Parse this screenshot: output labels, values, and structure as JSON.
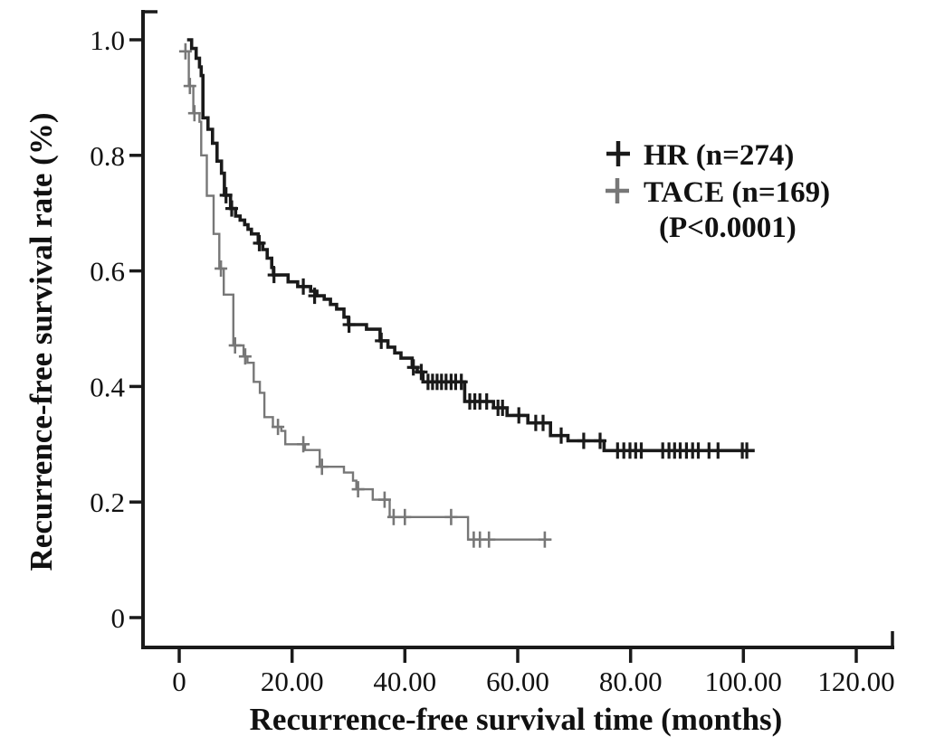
{
  "chart_data": {
    "type": "line",
    "subtype": "kaplan-meier-step-curves",
    "title": "",
    "xlabel": "Recurrence-free survival time (months)",
    "ylabel": "Recurrence-free survival rate (%)",
    "xlim": [
      0,
      127
    ],
    "ylim": [
      0,
      1.05
    ],
    "grid": false,
    "legend_position": "upper-right",
    "x_ticks": [
      {
        "value": 0,
        "label": "0"
      },
      {
        "value": 20,
        "label": "20.00"
      },
      {
        "value": 40,
        "label": "40.00"
      },
      {
        "value": 60,
        "label": "60.00"
      },
      {
        "value": 80,
        "label": "80.00"
      },
      {
        "value": 100,
        "label": "100.00"
      },
      {
        "value": 120,
        "label": "120.00"
      }
    ],
    "y_ticks": [
      {
        "value": 0,
        "label": "0"
      },
      {
        "value": 0.2,
        "label": "0.2"
      },
      {
        "value": 0.4,
        "label": "0.4"
      },
      {
        "value": 0.6,
        "label": "0.6"
      },
      {
        "value": 0.8,
        "label": "0.8"
      },
      {
        "value": 1.0,
        "label": "1.0"
      }
    ],
    "legend": {
      "items": [
        {
          "label": "HR (n=274)",
          "color": "#1a1a1a",
          "marker": "plus"
        },
        {
          "label": "TACE (n=169)",
          "color": "#777777",
          "marker": "plus"
        }
      ],
      "annotation": "(P<0.0001)"
    },
    "colors": {
      "hr": "#1a1a1a",
      "tace": "#777777",
      "axis": "#1a1a1a",
      "background": "#ffffff"
    },
    "series": [
      {
        "name": "HR",
        "n": 274,
        "color": "#1a1a1a",
        "line_width": 3.6,
        "end_time": 102,
        "steps": [
          [
            1.4,
            1.0
          ],
          [
            2.2,
            0.985
          ],
          [
            3.0,
            0.968
          ],
          [
            3.6,
            0.953
          ],
          [
            3.9,
            0.938
          ],
          [
            4.2,
            0.865
          ],
          [
            5.1,
            0.845
          ],
          [
            5.9,
            0.821
          ],
          [
            6.7,
            0.79
          ],
          [
            7.5,
            0.769
          ],
          [
            8.0,
            0.731
          ],
          [
            9.1,
            0.708
          ],
          [
            10.0,
            0.695
          ],
          [
            10.8,
            0.688
          ],
          [
            11.6,
            0.68
          ],
          [
            12.2,
            0.672
          ],
          [
            12.8,
            0.664
          ],
          [
            14.0,
            0.648
          ],
          [
            14.8,
            0.637
          ],
          [
            15.6,
            0.622
          ],
          [
            16.4,
            0.606
          ],
          [
            16.7,
            0.593
          ],
          [
            19.3,
            0.581
          ],
          [
            21.0,
            0.573
          ],
          [
            23.3,
            0.565
          ],
          [
            24.4,
            0.557
          ],
          [
            25.7,
            0.551
          ],
          [
            26.8,
            0.542
          ],
          [
            27.9,
            0.534
          ],
          [
            29.2,
            0.52
          ],
          [
            30.0,
            0.507
          ],
          [
            33.2,
            0.499
          ],
          [
            35.6,
            0.479
          ],
          [
            37.0,
            0.468
          ],
          [
            38.2,
            0.458
          ],
          [
            39.3,
            0.449
          ],
          [
            41.3,
            0.433
          ],
          [
            42.2,
            0.425
          ],
          [
            43.2,
            0.408
          ],
          [
            50.6,
            0.374
          ],
          [
            55.7,
            0.363
          ],
          [
            58.1,
            0.35
          ],
          [
            61.8,
            0.337
          ],
          [
            65.8,
            0.315
          ],
          [
            68.9,
            0.306
          ],
          [
            75.3,
            0.289
          ]
        ],
        "censors": [
          [
            8.3,
            0.731
          ],
          [
            9.3,
            0.708
          ],
          [
            14.2,
            0.648
          ],
          [
            16.8,
            0.593
          ],
          [
            22.0,
            0.573
          ],
          [
            24.0,
            0.557
          ],
          [
            30.1,
            0.507
          ],
          [
            35.8,
            0.479
          ],
          [
            41.5,
            0.433
          ],
          [
            42.9,
            0.425
          ],
          [
            44.1,
            0.408
          ],
          [
            44.9,
            0.408
          ],
          [
            45.7,
            0.408
          ],
          [
            46.5,
            0.408
          ],
          [
            47.3,
            0.408
          ],
          [
            48.2,
            0.408
          ],
          [
            49.0,
            0.408
          ],
          [
            50.0,
            0.408
          ],
          [
            51.5,
            0.374
          ],
          [
            52.4,
            0.374
          ],
          [
            53.3,
            0.374
          ],
          [
            54.5,
            0.374
          ],
          [
            56.5,
            0.363
          ],
          [
            57.3,
            0.363
          ],
          [
            60.2,
            0.35
          ],
          [
            63.2,
            0.337
          ],
          [
            64.5,
            0.337
          ],
          [
            67.7,
            0.315
          ],
          [
            71.7,
            0.306
          ],
          [
            74.6,
            0.306
          ],
          [
            77.7,
            0.289
          ],
          [
            78.8,
            0.289
          ],
          [
            79.9,
            0.289
          ],
          [
            80.9,
            0.289
          ],
          [
            81.9,
            0.289
          ],
          [
            85.7,
            0.289
          ],
          [
            86.8,
            0.289
          ],
          [
            87.8,
            0.289
          ],
          [
            88.8,
            0.289
          ],
          [
            89.9,
            0.289
          ],
          [
            91.0,
            0.289
          ],
          [
            92.0,
            0.289
          ],
          [
            93.9,
            0.289
          ],
          [
            95.5,
            0.289
          ],
          [
            99.8,
            0.289
          ],
          [
            100.6,
            0.289
          ]
        ]
      },
      {
        "name": "TACE",
        "n": 169,
        "color": "#777777",
        "line_width": 2.4,
        "end_time": 66,
        "steps": [
          [
            0.9,
            0.98
          ],
          [
            1.7,
            0.92
          ],
          [
            2.5,
            0.873
          ],
          [
            3.6,
            0.858
          ],
          [
            3.9,
            0.8
          ],
          [
            4.9,
            0.73
          ],
          [
            6.1,
            0.664
          ],
          [
            7.1,
            0.604
          ],
          [
            7.9,
            0.559
          ],
          [
            9.6,
            0.471
          ],
          [
            11.4,
            0.452
          ],
          [
            12.1,
            0.441
          ],
          [
            13.2,
            0.408
          ],
          [
            14.3,
            0.389
          ],
          [
            15.1,
            0.347
          ],
          [
            16.6,
            0.33
          ],
          [
            18.1,
            0.323
          ],
          [
            18.8,
            0.3
          ],
          [
            22.3,
            0.29
          ],
          [
            24.9,
            0.261
          ],
          [
            29.2,
            0.251
          ],
          [
            30.8,
            0.237
          ],
          [
            31.4,
            0.222
          ],
          [
            34.3,
            0.204
          ],
          [
            37.3,
            0.174
          ],
          [
            51.2,
            0.135
          ]
        ],
        "censors": [
          [
            1.1,
            0.98
          ],
          [
            1.9,
            0.92
          ],
          [
            2.7,
            0.873
          ],
          [
            7.4,
            0.604
          ],
          [
            9.9,
            0.471
          ],
          [
            11.7,
            0.452
          ],
          [
            17.5,
            0.33
          ],
          [
            22.0,
            0.3
          ],
          [
            25.3,
            0.261
          ],
          [
            31.7,
            0.222
          ],
          [
            36.4,
            0.204
          ],
          [
            38.0,
            0.174
          ],
          [
            40.0,
            0.174
          ],
          [
            48.2,
            0.174
          ],
          [
            52.2,
            0.135
          ],
          [
            53.3,
            0.135
          ],
          [
            54.9,
            0.135
          ],
          [
            64.8,
            0.135
          ]
        ]
      }
    ]
  }
}
